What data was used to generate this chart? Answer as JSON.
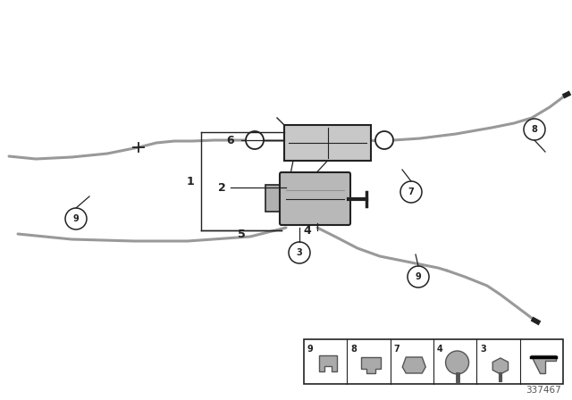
{
  "bg_color": "#ffffff",
  "cable_color": "#999999",
  "dark_color": "#222222",
  "part_color": "#aaaaaa",
  "part_edge": "#555555",
  "diagram_number": "337467",
  "fig_w": 6.4,
  "fig_h": 4.48,
  "dpi": 100
}
